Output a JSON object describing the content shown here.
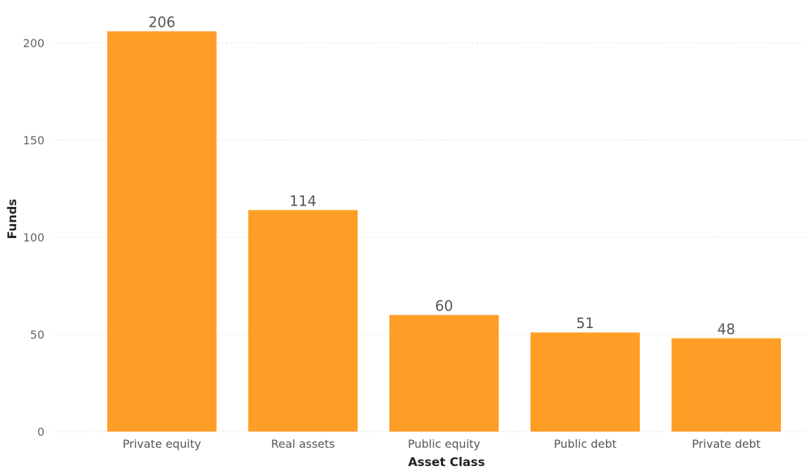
{
  "chart_data": {
    "type": "bar",
    "categories": [
      "Private equity",
      "Real assets",
      "Public equity",
      "Public debt",
      "Private debt"
    ],
    "values": [
      206,
      114,
      60,
      51,
      48
    ],
    "data_labels": [
      "206",
      "114",
      "60",
      "51",
      "48"
    ],
    "title": "",
    "xlabel": "Asset Class",
    "ylabel": "Funds",
    "ylim": [
      0,
      200
    ],
    "yticks": [
      0,
      50,
      100,
      150,
      200
    ],
    "ytick_labels": [
      "0",
      "50",
      "100",
      "150",
      "200"
    ],
    "grid": true,
    "legend": "none",
    "bar_color": "#FF9E27"
  }
}
